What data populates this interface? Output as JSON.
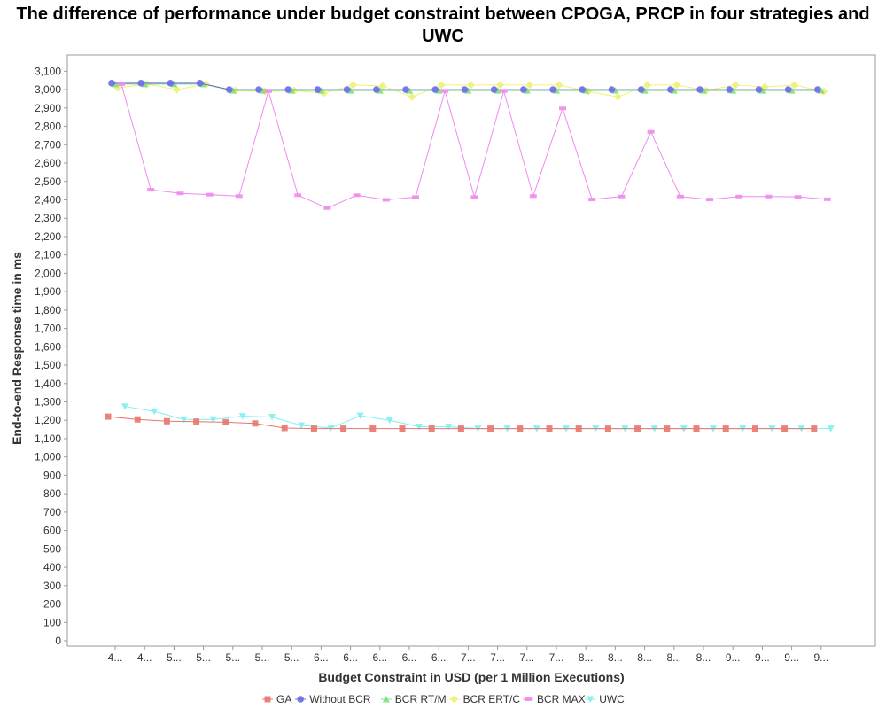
{
  "chart_data": {
    "type": "line",
    "title": "The difference of performance under budget constraint between CPOGA, PRCP in  four strategies and UWC",
    "xlabel": "Budget Constraint in USD (per 1 Million Executions)",
    "ylabel": "End-to-end Response time in ms",
    "ylim": [
      0,
      3150
    ],
    "ytick_step": 100,
    "grid": false,
    "legend_position": "bottom",
    "categories": [
      "4...",
      "4...",
      "5...",
      "5...",
      "5...",
      "5...",
      "5...",
      "6...",
      "6...",
      "6...",
      "6...",
      "6...",
      "7...",
      "7...",
      "7...",
      "7...",
      "8...",
      "8...",
      "8...",
      "8...",
      "8...",
      "9...",
      "9...",
      "9...",
      "9..."
    ],
    "series": [
      {
        "name": "GA",
        "color": "#e8756e",
        "marker": "square",
        "values": [
          1220,
          1205,
          1195,
          1193,
          1190,
          1183,
          1158,
          1155,
          1155,
          1155,
          1155,
          1155,
          1155,
          1155,
          1155,
          1155,
          1155,
          1155,
          1155,
          1155,
          1155,
          1155,
          1155,
          1155,
          1155
        ]
      },
      {
        "name": "Without BCR",
        "color": "#6a6ae8",
        "marker": "circle",
        "values": [
          3035,
          3035,
          3035,
          3035,
          3000,
          3000,
          3000,
          3000,
          3000,
          3000,
          3000,
          3000,
          3000,
          3000,
          3000,
          3000,
          3000,
          3000,
          3000,
          3000,
          3000,
          3000,
          3000,
          3000,
          3000
        ]
      },
      {
        "name": "BCR RT/M",
        "color": "#7ce07c",
        "marker": "triangle-up",
        "values": [
          3030,
          3030,
          3030,
          3030,
          2995,
          2995,
          2995,
          2995,
          2995,
          2995,
          2995,
          2995,
          2995,
          2995,
          2995,
          2995,
          2995,
          2995,
          2995,
          2995,
          2995,
          2995,
          2995,
          2995,
          2995
        ]
      },
      {
        "name": "BCR ERT/C",
        "color": "#f0f07a",
        "marker": "diamond",
        "values": [
          3010,
          3030,
          3000,
          3030,
          2995,
          2990,
          2995,
          2980,
          3025,
          3020,
          2960,
          3025,
          3025,
          3025,
          3025,
          3025,
          2990,
          2960,
          3025,
          3025,
          2995,
          3025,
          3015,
          3025,
          2990
        ]
      },
      {
        "name": "BCR MAX",
        "color": "#f08af0",
        "marker": "bar",
        "values": [
          3030,
          2455,
          2435,
          2428,
          2420,
          2992,
          2425,
          2355,
          2425,
          2400,
          2415,
          2992,
          2415,
          2992,
          2420,
          2898,
          2402,
          2418,
          2770,
          2418,
          2402,
          2418,
          2418,
          2416,
          2403
        ]
      },
      {
        "name": "UWC",
        "color": "#7ef0f0",
        "marker": "triangle-down",
        "values": [
          1275,
          1248,
          1205,
          1205,
          1222,
          1218,
          1172,
          1158,
          1225,
          1200,
          1165,
          1165,
          1155,
          1155,
          1155,
          1155,
          1155,
          1155,
          1155,
          1155,
          1155,
          1155,
          1155,
          1155,
          1155
        ]
      }
    ]
  }
}
